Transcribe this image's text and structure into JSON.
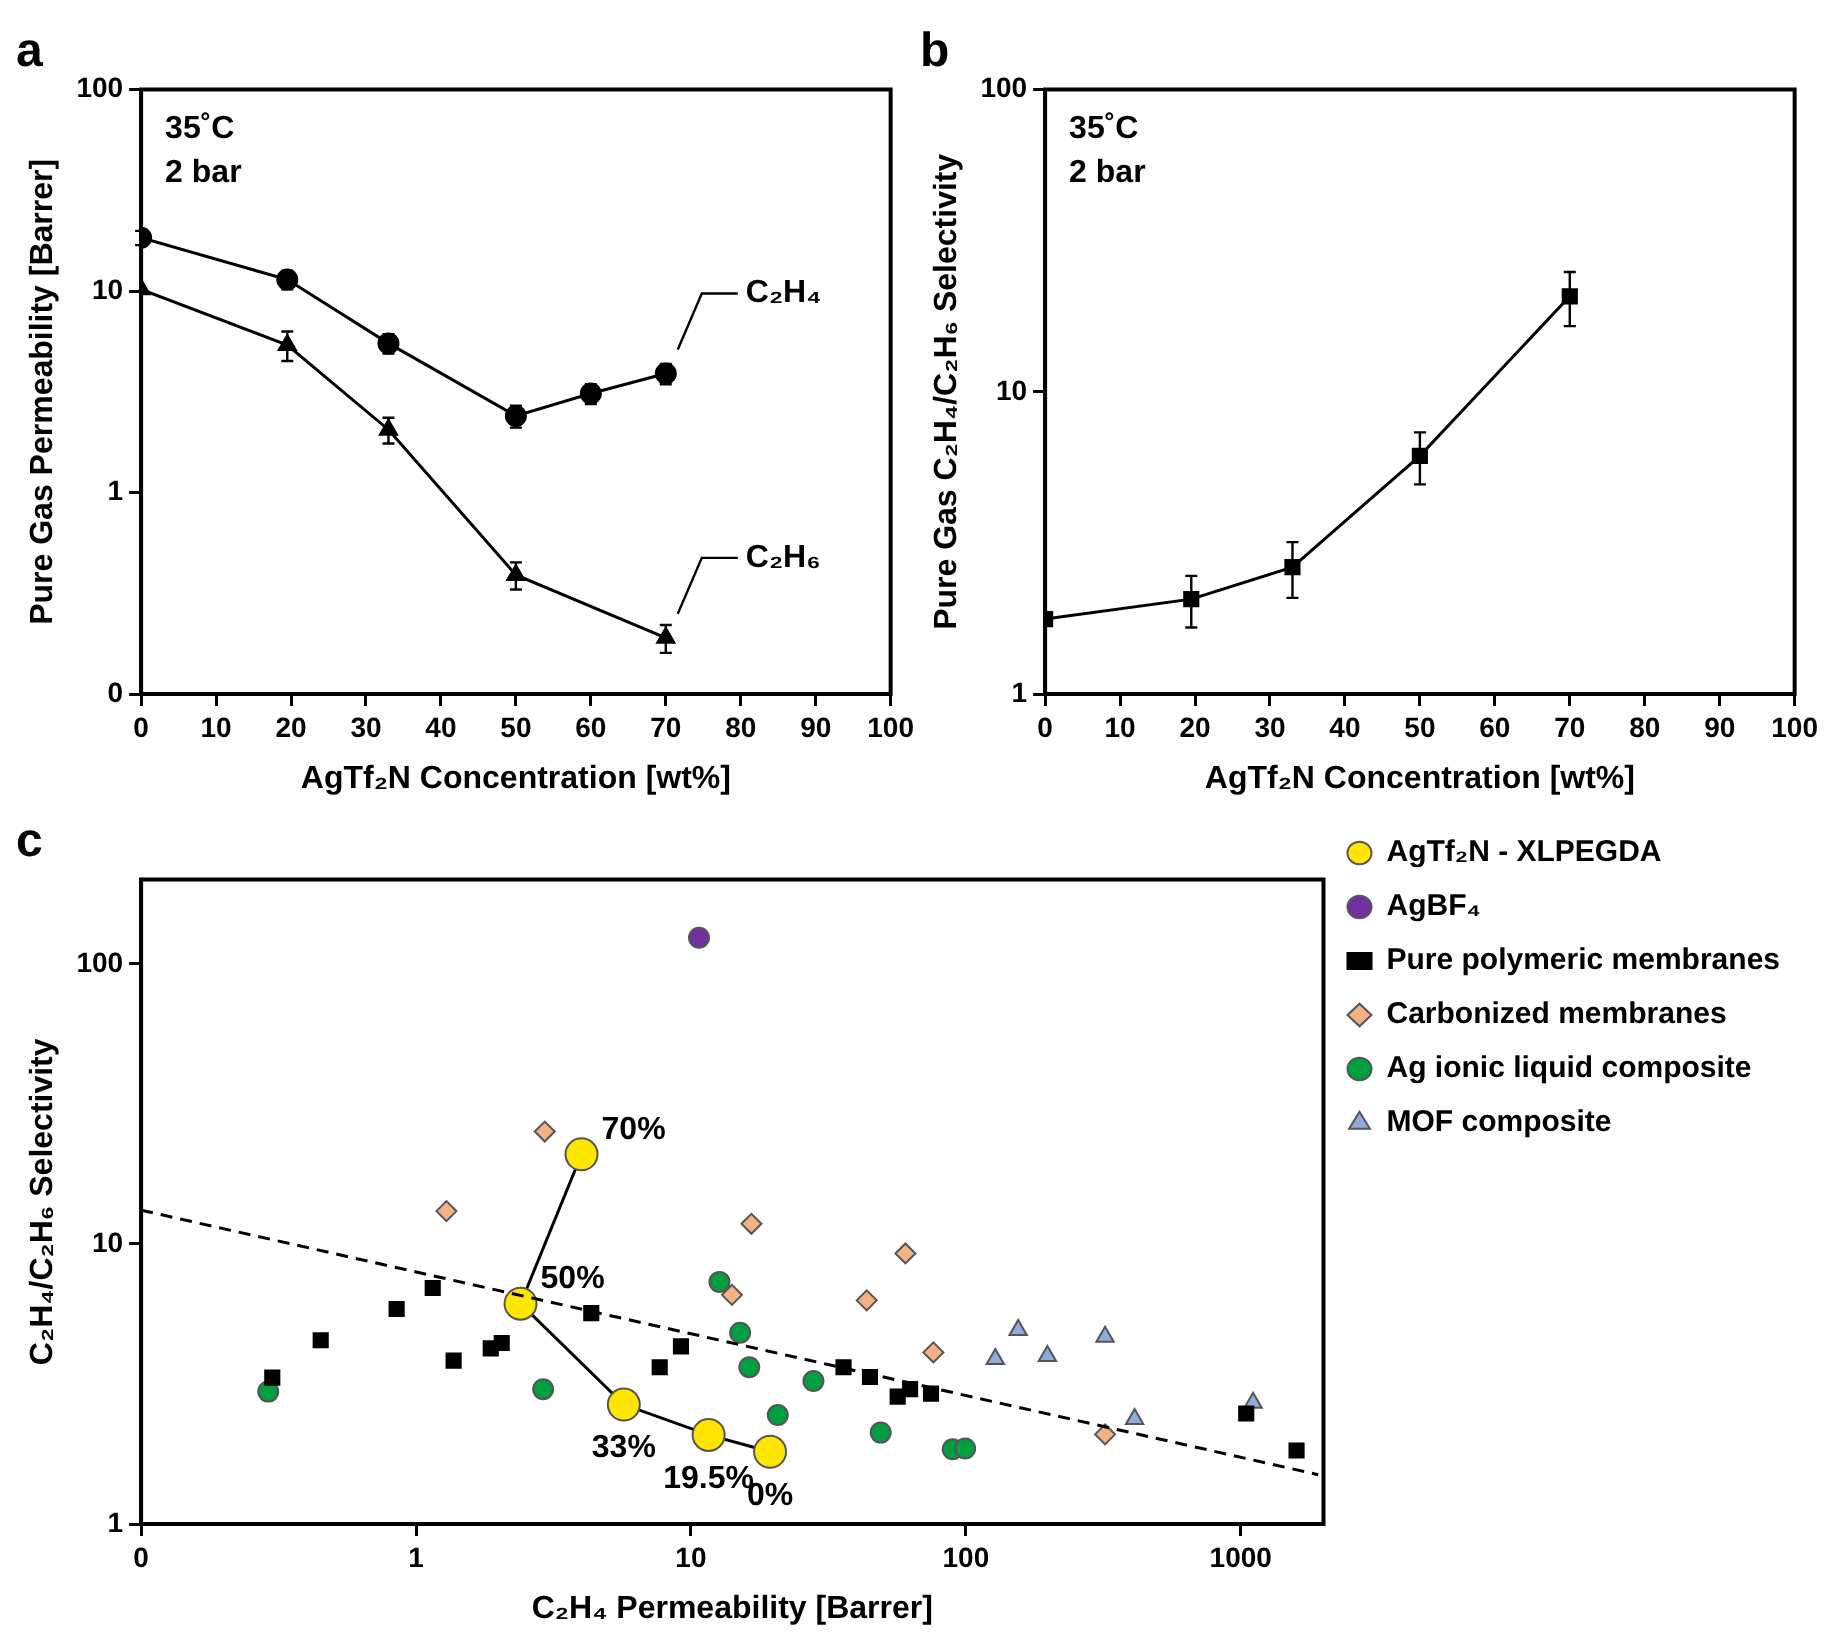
{
  "chart_data": [
    {
      "type": "line",
      "title": "a",
      "xlabel": "AgTf₂N Concentration [wt%]",
      "ylabel": "Pure Gas Permeability [Barrer]",
      "annotations": [
        "35˚C",
        "2 bar"
      ],
      "xlim": [
        0,
        100
      ],
      "xticks": [
        0,
        10,
        20,
        30,
        40,
        50,
        60,
        70,
        80,
        90,
        100
      ],
      "ylim": [
        0.1,
        100
      ],
      "yticks": [
        {
          "value": 0.1,
          "label": "0"
        },
        1,
        10,
        100
      ],
      "log": "y",
      "series": [
        {
          "name": "C₂H₄",
          "color": "#000000",
          "marker": "circle",
          "x": [
            0,
            19.5,
            33,
            50,
            60,
            70
          ],
          "values": [
            18.4,
            11.4,
            5.5,
            2.4,
            3.1,
            3.9
          ],
          "errors": [
            1.5,
            1.2,
            0.6,
            0.3,
            0.35,
            0.45
          ]
        },
        {
          "name": "C₂H₆",
          "color": "#000000",
          "marker": "triangle",
          "x": [
            0,
            19.5,
            33,
            50,
            70
          ],
          "values": [
            10.2,
            5.4,
            2.05,
            0.39,
            0.19
          ],
          "errors": [
            null,
            0.9,
            0.3,
            0.06,
            0.03
          ]
        }
      ]
    },
    {
      "type": "line",
      "title": "b",
      "xlabel": "AgTf₂N Concentration [wt%]",
      "ylabel": "Pure Gas C₂H₄/C₂H₆ Selectivity",
      "annotations": [
        "35˚C",
        "2 bar"
      ],
      "xlim": [
        0,
        100
      ],
      "xticks": [
        0,
        10,
        20,
        30,
        40,
        50,
        60,
        70,
        80,
        90,
        100
      ],
      "ylim": [
        1,
        100
      ],
      "yticks": [
        1,
        10,
        100
      ],
      "log": "y",
      "x": [
        0,
        19.5,
        33,
        50,
        70
      ],
      "series": [
        {
          "color": "#000000",
          "marker": "square",
          "values": [
            1.77,
            2.06,
            2.63,
            6.14,
            20.7
          ],
          "errors": [
            null,
            0.4,
            0.55,
            1.2,
            4.2
          ]
        }
      ]
    },
    {
      "type": "scatter",
      "title": "c",
      "xlabel": "C₂H₄ Permeability [Barrer]",
      "ylabel": "C₂H₄/C₂H₆ Selectivity",
      "xlim": [
        0.1,
        2000
      ],
      "xticks": [
        {
          "value": 0.1,
          "label": "0"
        },
        1,
        10,
        100,
        1000
      ],
      "ylim": [
        1,
        200
      ],
      "yticks": [
        1,
        10,
        100
      ],
      "log": "xy",
      "legend": "right",
      "annotations": [
        {
          "text": "0%",
          "x": 19.4,
          "y": 1.81
        },
        {
          "text": "19.5%",
          "x": 11.6,
          "y": 2.08
        },
        {
          "text": "33%",
          "x": 5.7,
          "y": 2.67
        },
        {
          "text": "50%",
          "x": 2.4,
          "y": 6.12
        },
        {
          "text": "70%",
          "x": 4.0,
          "y": 20.9
        }
      ],
      "series": [
        {
          "type": "line",
          "color": "#000000",
          "marker": "none",
          "line_style": "dashed",
          "x": [
            0.1,
            1914
          ],
          "values": [
            13.2,
            1.5
          ]
        },
        {
          "type": "line",
          "name": "AgTf₂N - XLPEGDA",
          "color": "#ffe600",
          "marker": "circle",
          "x": [
            19.4,
            11.6,
            5.7,
            2.4,
            4.0
          ],
          "values": [
            1.81,
            2.08,
            2.67,
            6.12,
            20.9
          ]
        },
        {
          "name": "AgBF₄",
          "color": "#7030a0",
          "marker": "circle",
          "x": [
            10.7
          ],
          "values": [
            124
          ]
        },
        {
          "name": "Pure polymeric membranes",
          "color": "#000000",
          "marker": "square",
          "x": [
            0.3,
            0.45,
            0.85,
            1.15,
            1.37,
            1.87,
            2.05,
            4.34,
            7.7,
            9.2,
            35.9,
            44.8,
            56.5,
            62.7,
            74.7,
            1047,
            1596
          ],
          "values": [
            3.33,
            4.53,
            5.86,
            6.96,
            3.83,
            4.24,
            4.43,
            5.66,
            3.63,
            4.31,
            3.63,
            3.35,
            2.85,
            3.03,
            2.92,
            2.48,
            1.83
          ]
        },
        {
          "name": "Carbonized membranes",
          "color": "#f4b183",
          "marker": "diamond",
          "x": [
            2.94,
            1.29,
            14.1,
            16.6,
            60.3,
            43.6,
            76.2,
            321
          ],
          "values": [
            25.2,
            13.1,
            6.58,
            11.8,
            9.25,
            6.29,
            4.1,
            2.09
          ]
        },
        {
          "name": "Ag ionic liquid composite",
          "color": "#00a040",
          "marker": "circle",
          "x": [
            0.29,
            2.9,
            12.7,
            15.1,
            16.3,
            27.9,
            20.7,
            49,
            89.6,
            99.4
          ],
          "values": [
            2.97,
            3.03,
            7.32,
            4.82,
            3.63,
            3.24,
            2.45,
            2.12,
            1.85,
            1.86
          ]
        },
        {
          "name": "MOF composite",
          "color": "#8faadc",
          "marker": "triangle",
          "x": [
            155,
            128,
            198,
            321,
            411,
            1109
          ],
          "values": [
            4.93,
            3.88,
            3.98,
            4.66,
            2.37,
            2.71
          ]
        }
      ]
    }
  ]
}
